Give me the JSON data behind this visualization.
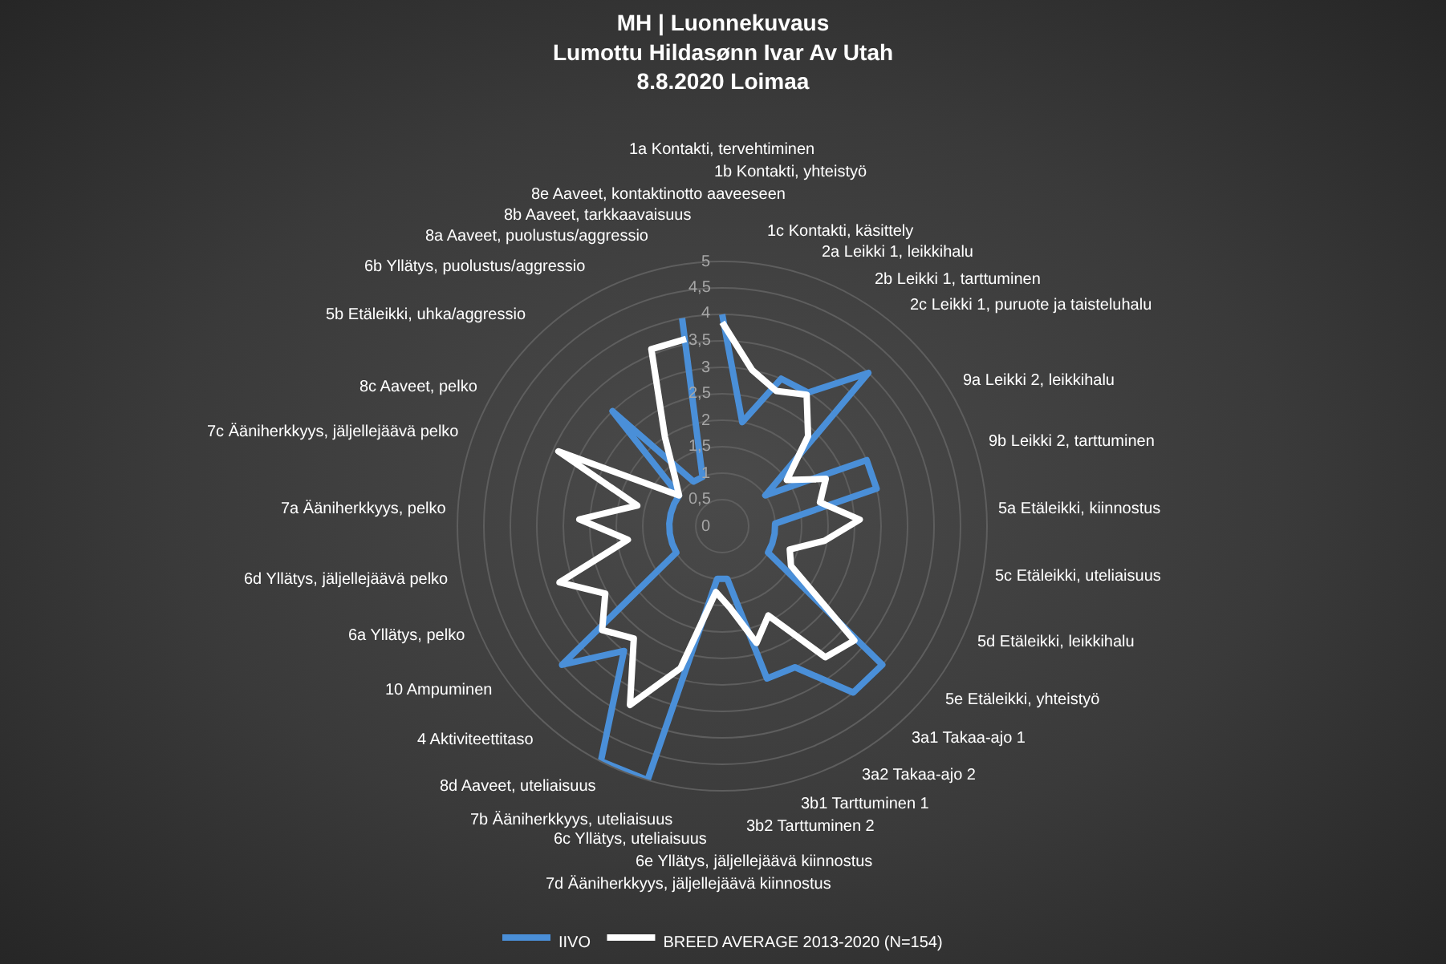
{
  "chart_data": {
    "type": "radar",
    "title": "MH | Luonnekuvaus\nLumottu Hildasønn Ivar Av Utah\n8.8.2020 Loimaa",
    "categories": [
      "1a Kontakti, tervehtiminen",
      "1b Kontakti, yhteistyö",
      "1c Kontakti, käsittely",
      "2a Leikki 1, leikkihalu",
      "2b Leikki 1, tarttuminen",
      "2c Leikki 1, puruote ja taisteluhalu",
      "9a Leikki 2, leikkihalu",
      "9b Leikki 2, tarttuminen",
      "5a Etäleikki, kiinnostus",
      "5c Etäleikki, uteliaisuus",
      "5d Etäleikki, leikkihalu",
      "5e Etäleikki, yhteistyö",
      "3a1 Takaa-ajo 1",
      "3a2 Takaa-ajo 2",
      "3b1 Tarttuminen 1",
      "3b2 Tarttuminen 2",
      "6e Yllätys, jäljellejäävä kiinnostus",
      "7d Ääniherkkyys, jäljellejäävä kiinnostus",
      "6c Yllätys, uteliaisuus",
      "7b Ääniherkkyys, uteliaisuus",
      "8d Aaveet, uteliaisuus",
      "4 Aktiviteettitaso",
      "10 Ampuminen",
      "6a Yllätys, pelko",
      "6d Yllätys, jäljellejäävä pelko",
      "7a Ääniherkkyys, pelko",
      "7c Ääniherkkyys, jäljellejäävä pelko",
      "8c Aaveet, pelko",
      "5b Etäleikki, uhka/aggressio",
      "6b Yllätys, puolustus/aggressio",
      "8a Aaveet, puolustus/aggressio",
      "8b Aaveet, tarkkaavaisuus",
      "8e Aaveet, kontaktinotto aaveeseen"
    ],
    "series": [
      {
        "name": "IIVO",
        "color": "#4a8fd8",
        "values": [
          4,
          2,
          3,
          3,
          4,
          1,
          3,
          3,
          1,
          1,
          1,
          1,
          4,
          4,
          3,
          3,
          1,
          1,
          5,
          5,
          3,
          4,
          1,
          1,
          1,
          1,
          1,
          1,
          1,
          3,
          1,
          1,
          4
        ]
      },
      {
        "name": "BREED AVERAGE 2013-2020 (N=154)",
        "color": "#ffffff",
        "values": [
          3.85,
          3.0,
          2.75,
          2.95,
          2.35,
          1.5,
          2.15,
          1.9,
          2.6,
          1.95,
          1.35,
          1.5,
          3.3,
          3.15,
          1.9,
          2.3,
          1.55,
          1.25,
          2.8,
          3.8,
          2.7,
          3.0,
          2.55,
          3.25,
          1.8,
          2.7,
          1.65,
          3.4,
          1.0,
          1.3,
          2.0,
          3.6,
          3.6
        ]
      }
    ],
    "ylim": [
      0,
      5
    ],
    "yticks": [
      0,
      {
        "value": 0.5,
        "label": "0,5"
      },
      1,
      {
        "value": 1.5,
        "label": "1,5"
      },
      2,
      {
        "value": 2.5,
        "label": "2,5"
      },
      3,
      {
        "value": 3.5,
        "label": "3,5"
      },
      4,
      {
        "value": 4.5,
        "label": "4,5"
      },
      5
    ],
    "grid": true,
    "legend": "bottom"
  }
}
